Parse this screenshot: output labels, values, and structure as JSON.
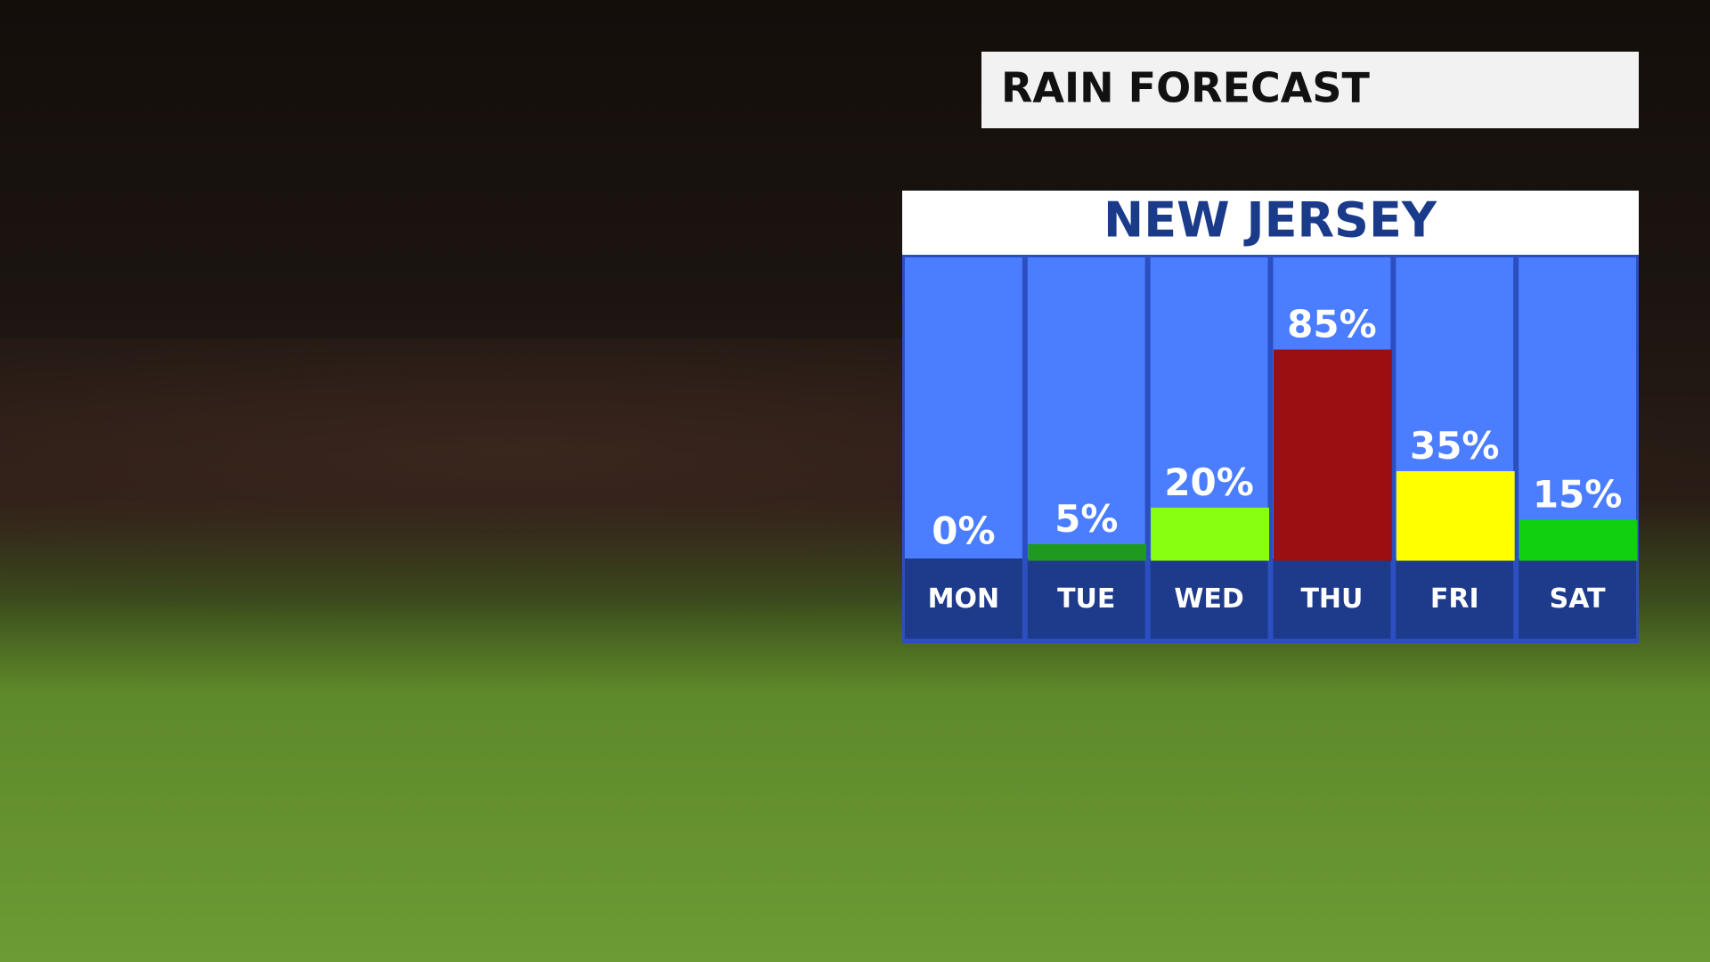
{
  "chart_data": {
    "type": "bar",
    "title": "RAIN FORECAST",
    "subtitle": "NEW JERSEY",
    "categories": [
      "MON",
      "TUE",
      "WED",
      "THU",
      "FRI",
      "SAT"
    ],
    "values": [
      0,
      5,
      20,
      85,
      35,
      15
    ],
    "value_labels": [
      "0%",
      "5%",
      "20%",
      "85%",
      "35%",
      "15%"
    ],
    "colors": [
      "#ffffff",
      "#1f9a1f",
      "#88ff10",
      "#9b0f12",
      "#ffff00",
      "#10d010"
    ]
  }
}
